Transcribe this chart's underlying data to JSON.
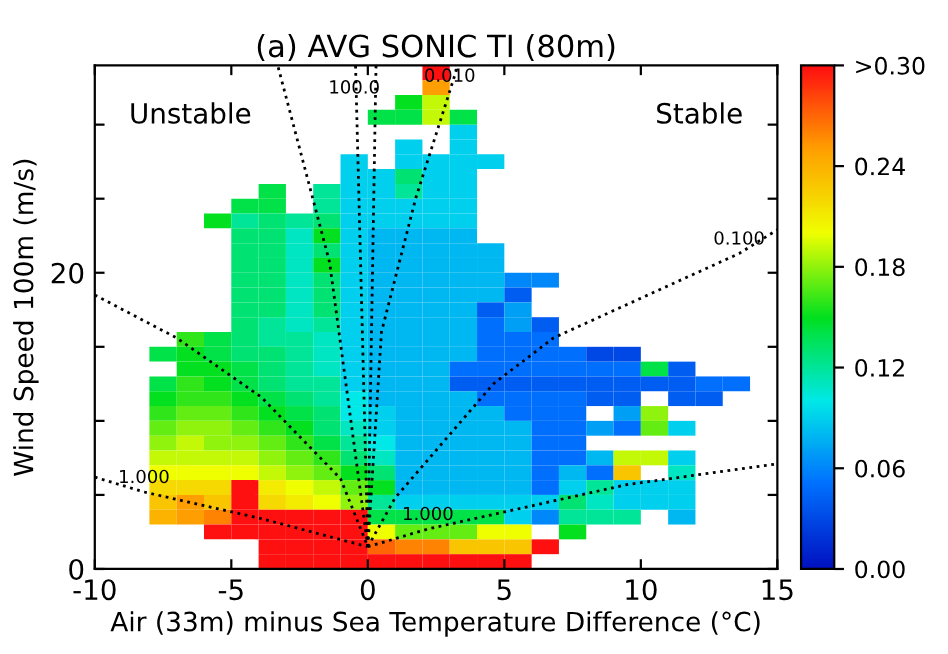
{
  "chart_data": {
    "type": "heatmap",
    "title": "(a) AVG SONIC TI (80m)",
    "xlabel": "Air (33m) minus Sea Temperature Difference (°C)",
    "ylabel": "Wind Speed 100m (m/s)",
    "xlim": [
      -10,
      15
    ],
    "xticks": [
      -10,
      -5,
      0,
      5,
      10,
      15
    ],
    "ylim": [
      0,
      34
    ],
    "yticks": [
      0,
      {
        "value": 5,
        "label": null
      },
      {
        "value": 10,
        "label": null
      },
      {
        "value": 15,
        "label": null
      },
      20,
      {
        "value": 25,
        "label": null
      },
      {
        "value": 30,
        "label": null
      }
    ],
    "clim": [
      0,
      0.3
    ],
    "cticks": [
      {
        "value": 0,
        "label": "0.00"
      },
      {
        "value": 0.06,
        "label": "0.06"
      },
      {
        "value": 0.12,
        "label": "0.12"
      },
      {
        "value": 0.18,
        "label": "0.18"
      },
      {
        "value": 0.24,
        "label": "0.24"
      },
      {
        "value": 0.3,
        "label": ">0.30"
      }
    ],
    "colors": [
      "#0010c0",
      "#0070ff",
      "#00e8e8",
      "#00e020",
      "#f0ff00",
      "#ffa000",
      "#ff1010"
    ],
    "x": [
      -9.5,
      -8.5,
      -7.5,
      -6.5,
      -5.5,
      -4.5,
      -3.5,
      -2.5,
      -1.5,
      -0.5,
      0.5,
      1.5,
      2.5,
      3.5,
      4.5,
      5.5,
      6.5,
      7.5,
      8.5,
      9.5,
      10.5,
      11.5,
      12.5,
      13.5
    ],
    "y": [
      33.5,
      32.5,
      31.5,
      30.5,
      29.5,
      28.5,
      27.5,
      26.5,
      25.5,
      24.5,
      23.5,
      22.5,
      21.5,
      20.5,
      19.5,
      18.5,
      17.5,
      16.5,
      15.5,
      14.5,
      13.5,
      12.5,
      11.5,
      10.5,
      9.5,
      8.5,
      7.5,
      6.5,
      5.5,
      4.5,
      3.5,
      2.5,
      1.5,
      0.5
    ],
    "cells": [
      [
        null,
        null,
        null,
        null,
        null,
        null,
        null,
        null,
        null,
        null,
        null,
        null,
        0.3,
        null,
        null,
        null,
        null,
        null,
        null,
        null,
        null,
        null,
        null,
        null
      ],
      [
        null,
        null,
        null,
        null,
        null,
        null,
        null,
        null,
        null,
        null,
        null,
        null,
        0.25,
        null,
        null,
        null,
        null,
        null,
        null,
        null,
        null,
        null,
        null,
        null
      ],
      [
        null,
        null,
        null,
        null,
        null,
        null,
        null,
        null,
        null,
        null,
        null,
        0.15,
        0.19,
        null,
        null,
        null,
        null,
        null,
        null,
        null,
        null,
        null,
        null,
        null
      ],
      [
        null,
        null,
        null,
        null,
        null,
        null,
        null,
        null,
        null,
        null,
        0.14,
        0.14,
        0.19,
        0.14,
        null,
        null,
        null,
        null,
        null,
        null,
        null,
        null,
        null,
        null
      ],
      [
        null,
        null,
        null,
        null,
        null,
        null,
        null,
        null,
        null,
        null,
        null,
        null,
        null,
        0.09,
        null,
        null,
        null,
        null,
        null,
        null,
        null,
        null,
        null,
        null
      ],
      [
        null,
        null,
        null,
        null,
        null,
        null,
        null,
        null,
        null,
        null,
        null,
        0.09,
        null,
        0.09,
        null,
        null,
        null,
        null,
        null,
        null,
        null,
        null,
        null,
        null
      ],
      [
        null,
        null,
        null,
        null,
        null,
        null,
        null,
        null,
        null,
        0.09,
        null,
        0.09,
        0.09,
        0.09,
        0.09,
        null,
        null,
        null,
        null,
        null,
        null,
        null,
        null,
        null
      ],
      [
        null,
        null,
        null,
        null,
        null,
        null,
        null,
        null,
        null,
        0.09,
        0.09,
        0.13,
        0.09,
        0.09,
        null,
        null,
        null,
        null,
        null,
        null,
        null,
        null,
        null,
        null
      ],
      [
        null,
        null,
        null,
        null,
        null,
        null,
        0.14,
        null,
        0.12,
        0.09,
        0.09,
        0.12,
        0.09,
        0.09,
        null,
        null,
        null,
        null,
        null,
        null,
        null,
        null,
        null,
        null
      ],
      [
        null,
        null,
        null,
        null,
        null,
        0.14,
        0.14,
        null,
        0.12,
        0.09,
        0.09,
        0.09,
        0.09,
        0.09,
        null,
        null,
        null,
        null,
        null,
        null,
        null,
        null,
        null,
        null
      ],
      [
        null,
        null,
        null,
        null,
        0.15,
        0.12,
        0.13,
        0.12,
        0.13,
        0.09,
        0.09,
        0.09,
        0.09,
        0.09,
        null,
        null,
        null,
        null,
        null,
        null,
        null,
        null,
        null,
        null
      ],
      [
        null,
        null,
        null,
        null,
        null,
        0.13,
        0.13,
        0.11,
        0.15,
        0.09,
        0.08,
        0.08,
        0.08,
        0.08,
        null,
        null,
        null,
        null,
        null,
        null,
        null,
        null,
        null,
        null
      ],
      [
        null,
        null,
        null,
        null,
        null,
        0.13,
        0.13,
        0.11,
        0.13,
        0.09,
        0.08,
        0.08,
        0.08,
        0.08,
        0.08,
        null,
        null,
        null,
        null,
        null,
        null,
        null,
        null,
        null
      ],
      [
        null,
        null,
        null,
        null,
        null,
        0.13,
        0.13,
        0.11,
        0.15,
        0.09,
        0.08,
        0.08,
        0.08,
        0.08,
        0.08,
        null,
        null,
        null,
        null,
        null,
        null,
        null,
        null,
        null
      ],
      [
        null,
        null,
        null,
        null,
        null,
        0.13,
        0.13,
        0.11,
        0.13,
        0.09,
        0.08,
        0.08,
        0.08,
        0.08,
        0.08,
        0.06,
        0.06,
        null,
        null,
        null,
        null,
        null,
        null,
        null
      ],
      [
        null,
        null,
        null,
        null,
        null,
        0.13,
        0.13,
        0.11,
        0.13,
        0.09,
        0.08,
        0.08,
        0.08,
        0.08,
        0.08,
        0.04,
        null,
        null,
        null,
        null,
        null,
        null,
        null,
        null
      ],
      [
        null,
        null,
        null,
        null,
        null,
        0.13,
        0.13,
        0.11,
        0.13,
        0.09,
        0.08,
        0.08,
        0.08,
        0.08,
        0.04,
        0.07,
        null,
        null,
        null,
        null,
        null,
        null,
        null,
        null
      ],
      [
        null,
        null,
        null,
        null,
        null,
        0.13,
        0.12,
        0.11,
        0.12,
        0.09,
        0.08,
        0.08,
        0.08,
        0.08,
        0.05,
        0.07,
        0.04,
        null,
        null,
        null,
        null,
        null,
        null,
        null
      ],
      [
        null,
        null,
        null,
        0.16,
        0.14,
        0.13,
        0.12,
        0.12,
        0.11,
        0.09,
        0.08,
        0.08,
        0.08,
        0.08,
        0.05,
        0.05,
        0.05,
        null,
        null,
        null,
        null,
        null,
        null,
        null
      ],
      [
        null,
        null,
        0.14,
        0.15,
        0.14,
        0.13,
        0.13,
        0.12,
        0.11,
        0.09,
        0.08,
        0.08,
        0.08,
        0.08,
        0.05,
        0.05,
        0.05,
        0.05,
        0.03,
        0.03,
        null,
        null,
        null,
        null
      ],
      [
        null,
        null,
        null,
        0.15,
        0.15,
        0.14,
        0.13,
        0.12,
        0.11,
        0.09,
        0.08,
        0.08,
        0.08,
        0.05,
        0.05,
        0.05,
        0.05,
        0.05,
        0.05,
        0.05,
        0.14,
        0.04,
        null,
        null
      ],
      [
        null,
        null,
        0.14,
        0.16,
        0.15,
        0.14,
        0.13,
        0.12,
        0.12,
        0.09,
        0.08,
        0.08,
        0.08,
        0.04,
        0.04,
        0.04,
        0.04,
        0.04,
        0.04,
        0.04,
        0.04,
        0.04,
        0.05,
        0.05
      ],
      [
        null,
        null,
        0.15,
        0.16,
        0.16,
        0.15,
        0.14,
        0.13,
        0.12,
        0.1,
        0.08,
        0.08,
        0.08,
        0.08,
        0.05,
        0.05,
        0.05,
        0.05,
        0.04,
        0.04,
        null,
        0.04,
        0.04,
        null
      ],
      [
        null,
        null,
        0.16,
        0.17,
        0.17,
        0.16,
        0.15,
        0.14,
        0.13,
        0.1,
        0.09,
        0.08,
        0.08,
        0.08,
        0.08,
        0.05,
        0.05,
        0.05,
        null,
        0.07,
        0.18,
        null,
        null,
        null
      ],
      [
        null,
        null,
        0.17,
        0.18,
        0.18,
        0.17,
        0.16,
        0.15,
        0.13,
        0.11,
        0.09,
        0.08,
        0.08,
        0.08,
        0.08,
        0.08,
        0.05,
        0.05,
        0.07,
        0.05,
        0.17,
        0.09,
        null,
        null
      ],
      [
        null,
        null,
        0.18,
        0.19,
        0.18,
        0.18,
        0.17,
        0.16,
        0.14,
        0.12,
        0.1,
        0.08,
        0.08,
        0.08,
        0.08,
        0.08,
        0.05,
        0.05,
        null,
        null,
        null,
        null,
        null,
        null
      ],
      [
        null,
        null,
        0.19,
        0.19,
        0.19,
        0.19,
        0.18,
        0.17,
        0.16,
        0.13,
        0.11,
        0.08,
        0.08,
        0.08,
        0.08,
        0.08,
        0.05,
        0.05,
        0.08,
        0.19,
        0.19,
        0.09,
        null,
        null
      ],
      [
        null,
        null,
        0.2,
        0.2,
        0.2,
        0.2,
        0.19,
        0.18,
        0.17,
        0.15,
        0.13,
        0.08,
        0.08,
        0.08,
        0.08,
        0.08,
        0.05,
        0.08,
        0.05,
        0.23,
        null,
        0.11,
        null,
        null
      ],
      [
        null,
        null,
        0.22,
        0.22,
        0.22,
        0.3,
        0.21,
        0.2,
        0.19,
        0.17,
        0.15,
        0.08,
        0.08,
        0.08,
        0.08,
        0.08,
        0.05,
        0.09,
        0.12,
        0.09,
        0.09,
        0.09,
        null,
        null
      ],
      [
        null,
        null,
        0.23,
        0.25,
        0.23,
        0.3,
        0.22,
        0.21,
        0.2,
        0.18,
        0.12,
        0.09,
        0.09,
        0.09,
        0.09,
        0.09,
        0.09,
        0.13,
        0.11,
        0.09,
        0.09,
        0.09,
        null,
        null
      ],
      [
        null,
        null,
        0.24,
        0.25,
        0.26,
        0.3,
        0.3,
        0.3,
        0.3,
        0.3,
        0.14,
        0.14,
        0.14,
        0.14,
        0.14,
        0.09,
        0.06,
        0.12,
        0.12,
        0.12,
        null,
        0.08,
        null,
        null
      ],
      [
        null,
        null,
        null,
        null,
        0.3,
        0.3,
        0.3,
        0.3,
        0.3,
        0.3,
        0.2,
        0.17,
        0.17,
        0.17,
        0.2,
        0.2,
        null,
        0.15,
        null,
        null,
        null,
        null,
        null,
        null
      ],
      [
        null,
        null,
        null,
        null,
        null,
        null,
        0.3,
        0.3,
        0.3,
        0.3,
        0.27,
        0.26,
        0.26,
        0.23,
        0.23,
        0.23,
        0.3,
        null,
        null,
        null,
        null,
        null,
        null,
        null
      ],
      [
        null,
        null,
        null,
        null,
        null,
        null,
        0.3,
        0.3,
        0.3,
        0.3,
        0.3,
        0.3,
        0.3,
        0.3,
        0.3,
        0.3,
        null,
        null,
        null,
        null,
        null,
        null,
        null,
        null
      ]
    ],
    "series": [
      {
        "type": "line",
        "color": "#000000",
        "line_style": "dotted",
        "x": [
          -10,
          -7,
          -3.9,
          -1,
          0
        ],
        "values": [
          18.5,
          15.6,
          11.6,
          6.1,
          1.5
        ]
      },
      {
        "type": "line",
        "color": "#000000",
        "line_style": "dotted",
        "x": [
          -10,
          -8.2,
          -3.9,
          0
        ],
        "values": [
          6.2,
          5.2,
          3.4,
          1.5
        ]
      },
      {
        "type": "line",
        "color": "#000000",
        "line_style": "dotted",
        "x": [
          0,
          2.2,
          9.5,
          15
        ],
        "values": [
          1.5,
          2.7,
          5.7,
          7.1
        ]
      },
      {
        "type": "line",
        "color": "#000000",
        "line_style": "dotted",
        "x": [
          0,
          1,
          4.6,
          6.8,
          13.6,
          15
        ],
        "values": [
          1.5,
          4.8,
          12.5,
          15.6,
          21.3,
          22.9
        ]
      },
      {
        "type": "line",
        "color": "#000000",
        "line_style": "dotted",
        "x": [
          0,
          0.5,
          1.75,
          3.3
        ],
        "values": [
          1.5,
          16,
          25,
          34
        ]
      },
      {
        "type": "line",
        "color": "#000000",
        "line_style": "dotted",
        "x": [
          0,
          -0.45
        ],
        "values": [
          1.5,
          34
        ]
      },
      {
        "type": "line",
        "color": "#000000",
        "line_style": "dotted",
        "x": [
          0,
          0.3
        ],
        "values": [
          1.5,
          34
        ]
      },
      {
        "type": "line",
        "color": "#000000",
        "line_style": "dotted",
        "x": [
          0,
          -1.4,
          -3.3
        ],
        "values": [
          1.5,
          20.7,
          34
        ]
      }
    ],
    "annotations": [
      "Unstable",
      "Stable",
      {
        "text": "1.000",
        "x": -8.2,
        "y": 5.2
      },
      {
        "text": "1.000",
        "x": 2.2,
        "y": 2.7
      },
      {
        "text": "0.100",
        "x": 13.6,
        "y": 21.3
      },
      {
        "text": "0.010",
        "x": 3.0,
        "y": 32.3
      },
      {
        "text": "100.0",
        "x": -0.5,
        "y": 31.5
      }
    ]
  }
}
